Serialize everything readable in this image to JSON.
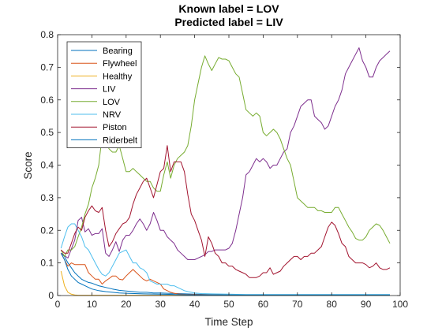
{
  "chart_data": {
    "type": "line",
    "title": "Known label = LOV",
    "subtitle": "Predicted label = LIV",
    "xlabel": "Time Step",
    "ylabel": "Score",
    "xlim": [
      0,
      100
    ],
    "ylim": [
      0,
      0.8
    ],
    "xticks": [
      0,
      10,
      20,
      30,
      40,
      50,
      60,
      70,
      80,
      90,
      100
    ],
    "yticks": [
      0,
      0.1,
      0.2,
      0.3,
      0.4,
      0.5,
      0.6,
      0.7,
      0.8
    ],
    "grid": false,
    "legend_position": "top-left",
    "series": [
      {
        "name": "Bearing",
        "color": "#0072BD",
        "x": [
          1,
          2,
          3,
          4,
          5,
          6,
          7,
          8,
          9,
          10,
          12,
          14,
          16,
          18,
          20,
          22,
          24,
          26,
          28,
          30,
          32,
          35,
          40,
          45,
          50,
          55,
          60,
          70,
          80,
          90,
          97
        ],
        "y": [
          0.13,
          0.12,
          0.1,
          0.085,
          0.07,
          0.06,
          0.05,
          0.045,
          0.04,
          0.038,
          0.03,
          0.025,
          0.02,
          0.016,
          0.014,
          0.012,
          0.01,
          0.01,
          0.008,
          0.008,
          0.007,
          0.006,
          0.004,
          0.003,
          0.002,
          0.002,
          0.002,
          0.002,
          0.002,
          0.002,
          0.002
        ]
      },
      {
        "name": "Flywheel",
        "color": "#D95319",
        "x": [
          1,
          2,
          3,
          4,
          5,
          6,
          7,
          8,
          9,
          10,
          11,
          12,
          13,
          14,
          15,
          16,
          17,
          18,
          19,
          20,
          21,
          22,
          23,
          24,
          25,
          26,
          27,
          28,
          29,
          30,
          31,
          32,
          33,
          34,
          35,
          36,
          38,
          40,
          45,
          50,
          55,
          60,
          70,
          80,
          90,
          97
        ],
        "y": [
          0.13,
          0.11,
          0.09,
          0.1,
          0.095,
          0.095,
          0.095,
          0.095,
          0.07,
          0.06,
          0.05,
          0.05,
          0.035,
          0.045,
          0.052,
          0.06,
          0.06,
          0.05,
          0.048,
          0.06,
          0.07,
          0.08,
          0.07,
          0.06,
          0.05,
          0.045,
          0.05,
          0.045,
          0.04,
          0.035,
          0.02,
          0.015,
          0.01,
          0.007,
          0.005,
          0.004,
          0.003,
          0.003,
          0.002,
          0.002,
          0.002,
          0.002,
          0.002,
          0.002,
          0.002,
          0.002
        ]
      },
      {
        "name": "Healthy",
        "color": "#EDB120",
        "x": [
          1,
          2,
          3,
          4,
          5,
          6,
          7,
          8,
          10,
          12,
          15,
          20,
          30,
          40,
          60,
          80,
          97
        ],
        "y": [
          0.075,
          0.03,
          0.01,
          0.004,
          0.002,
          0.001,
          0.001,
          0.001,
          0.001,
          0.001,
          0.001,
          0.001,
          0.001,
          0.001,
          0.001,
          0.001,
          0.001
        ]
      },
      {
        "name": "LIV",
        "color": "#7E2F8E",
        "x": [
          1,
          3,
          5,
          6,
          7,
          8,
          9,
          10,
          11,
          12,
          13,
          14,
          15,
          16,
          17,
          18,
          19,
          20,
          21,
          22,
          23,
          24,
          25,
          26,
          27,
          28,
          29,
          30,
          31,
          32,
          33,
          34,
          35,
          36,
          37,
          38,
          39,
          40,
          41,
          42,
          43,
          44,
          45,
          46,
          47,
          48,
          49,
          50,
          51,
          52,
          53,
          54,
          55,
          56,
          57,
          58,
          59,
          60,
          61,
          62,
          63,
          64,
          65,
          66,
          67,
          68,
          69,
          70,
          71,
          72,
          73,
          74,
          75,
          76,
          77,
          78,
          79,
          80,
          81,
          82,
          83,
          84,
          85,
          86,
          87,
          88,
          89,
          90,
          91,
          92,
          93,
          94,
          95,
          96,
          97
        ],
        "y": [
          0.13,
          0.115,
          0.17,
          0.23,
          0.24,
          0.195,
          0.205,
          0.185,
          0.19,
          0.19,
          0.205,
          0.13,
          0.12,
          0.14,
          0.165,
          0.135,
          0.17,
          0.185,
          0.185,
          0.2,
          0.22,
          0.235,
          0.22,
          0.2,
          0.22,
          0.255,
          0.23,
          0.2,
          0.2,
          0.18,
          0.17,
          0.16,
          0.14,
          0.13,
          0.12,
          0.11,
          0.11,
          0.11,
          0.115,
          0.12,
          0.125,
          0.135,
          0.135,
          0.14,
          0.14,
          0.14,
          0.14,
          0.145,
          0.16,
          0.2,
          0.25,
          0.3,
          0.37,
          0.38,
          0.4,
          0.42,
          0.41,
          0.42,
          0.41,
          0.39,
          0.4,
          0.4,
          0.42,
          0.44,
          0.45,
          0.5,
          0.52,
          0.55,
          0.58,
          0.59,
          0.6,
          0.6,
          0.55,
          0.54,
          0.53,
          0.51,
          0.52,
          0.55,
          0.58,
          0.6,
          0.63,
          0.68,
          0.7,
          0.72,
          0.74,
          0.76,
          0.72,
          0.7,
          0.67,
          0.67,
          0.7,
          0.72,
          0.73,
          0.74,
          0.75
        ]
      },
      {
        "name": "LOV",
        "color": "#77AC30",
        "x": [
          1,
          2,
          3,
          4,
          5,
          6,
          7,
          8,
          9,
          10,
          11,
          12,
          13,
          14,
          15,
          16,
          17,
          18,
          19,
          20,
          21,
          22,
          23,
          24,
          25,
          26,
          27,
          28,
          29,
          30,
          31,
          32,
          33,
          34,
          35,
          36,
          37,
          38,
          39,
          40,
          41,
          42,
          43,
          44,
          45,
          46,
          47,
          48,
          49,
          50,
          51,
          52,
          53,
          54,
          55,
          56,
          57,
          58,
          59,
          60,
          61,
          62,
          63,
          64,
          65,
          66,
          67,
          68,
          69,
          70,
          71,
          72,
          73,
          74,
          75,
          76,
          77,
          78,
          79,
          80,
          81,
          82,
          83,
          84,
          85,
          86,
          87,
          88,
          89,
          90,
          91,
          92,
          93,
          94,
          95,
          96,
          97
        ],
        "y": [
          0.14,
          0.12,
          0.14,
          0.14,
          0.15,
          0.18,
          0.21,
          0.25,
          0.28,
          0.33,
          0.36,
          0.4,
          0.49,
          0.47,
          0.45,
          0.44,
          0.44,
          0.46,
          0.42,
          0.38,
          0.38,
          0.39,
          0.38,
          0.37,
          0.36,
          0.35,
          0.35,
          0.33,
          0.32,
          0.32,
          0.37,
          0.41,
          0.36,
          0.4,
          0.42,
          0.43,
          0.44,
          0.46,
          0.52,
          0.6,
          0.65,
          0.7,
          0.735,
          0.71,
          0.69,
          0.71,
          0.73,
          0.725,
          0.725,
          0.72,
          0.7,
          0.68,
          0.67,
          0.62,
          0.57,
          0.56,
          0.55,
          0.56,
          0.55,
          0.5,
          0.49,
          0.5,
          0.51,
          0.5,
          0.48,
          0.45,
          0.42,
          0.4,
          0.35,
          0.3,
          0.29,
          0.28,
          0.27,
          0.27,
          0.27,
          0.26,
          0.26,
          0.255,
          0.255,
          0.255,
          0.27,
          0.27,
          0.25,
          0.23,
          0.21,
          0.195,
          0.175,
          0.17,
          0.17,
          0.18,
          0.2,
          0.21,
          0.22,
          0.215,
          0.2,
          0.18,
          0.16
        ]
      },
      {
        "name": "NRV",
        "color": "#4DBEEE",
        "x": [
          1,
          2,
          3,
          4,
          5,
          6,
          7,
          8,
          9,
          10,
          11,
          12,
          13,
          14,
          15,
          16,
          17,
          18,
          19,
          20,
          21,
          22,
          23,
          24,
          25,
          26,
          27,
          28,
          29,
          30,
          31,
          32,
          33,
          34,
          35,
          36,
          37,
          38,
          39,
          40,
          42,
          45,
          50,
          55,
          60,
          70,
          80,
          90,
          97
        ],
        "y": [
          0.145,
          0.18,
          0.21,
          0.22,
          0.22,
          0.2,
          0.18,
          0.15,
          0.14,
          0.12,
          0.1,
          0.08,
          0.065,
          0.06,
          0.07,
          0.09,
          0.11,
          0.13,
          0.135,
          0.14,
          0.12,
          0.1,
          0.1,
          0.085,
          0.08,
          0.07,
          0.045,
          0.04,
          0.035,
          0.035,
          0.035,
          0.035,
          0.03,
          0.03,
          0.025,
          0.02,
          0.015,
          0.012,
          0.01,
          0.008,
          0.006,
          0.005,
          0.004,
          0.003,
          0.003,
          0.003,
          0.003,
          0.003,
          0.003
        ]
      },
      {
        "name": "Piston",
        "color": "#A2142F",
        "x": [
          1,
          2,
          3,
          4,
          5,
          6,
          7,
          8,
          9,
          10,
          11,
          12,
          13,
          14,
          15,
          16,
          17,
          18,
          19,
          20,
          21,
          22,
          23,
          24,
          25,
          26,
          27,
          28,
          29,
          30,
          31,
          32,
          33,
          34,
          35,
          36,
          37,
          38,
          39,
          40,
          41,
          42,
          43,
          44,
          45,
          46,
          47,
          48,
          49,
          50,
          51,
          52,
          53,
          54,
          55,
          56,
          57,
          58,
          59,
          60,
          61,
          62,
          63,
          64,
          65,
          66,
          67,
          68,
          69,
          70,
          71,
          72,
          73,
          74,
          75,
          76,
          77,
          78,
          79,
          80,
          81,
          82,
          83,
          84,
          85,
          86,
          87,
          88,
          89,
          90,
          91,
          92,
          93,
          94,
          95,
          96,
          97
        ],
        "y": [
          0.14,
          0.13,
          0.13,
          0.16,
          0.19,
          0.21,
          0.2,
          0.24,
          0.26,
          0.275,
          0.26,
          0.255,
          0.27,
          0.2,
          0.15,
          0.165,
          0.19,
          0.205,
          0.22,
          0.225,
          0.24,
          0.28,
          0.31,
          0.33,
          0.35,
          0.36,
          0.33,
          0.3,
          0.34,
          0.38,
          0.39,
          0.46,
          0.38,
          0.41,
          0.41,
          0.41,
          0.38,
          0.31,
          0.25,
          0.23,
          0.2,
          0.17,
          0.12,
          0.18,
          0.16,
          0.13,
          0.12,
          0.1,
          0.1,
          0.09,
          0.09,
          0.08,
          0.075,
          0.07,
          0.065,
          0.055,
          0.055,
          0.055,
          0.06,
          0.07,
          0.07,
          0.085,
          0.065,
          0.07,
          0.075,
          0.09,
          0.1,
          0.11,
          0.12,
          0.12,
          0.11,
          0.12,
          0.12,
          0.13,
          0.13,
          0.14,
          0.15,
          0.18,
          0.21,
          0.225,
          0.215,
          0.19,
          0.16,
          0.15,
          0.12,
          0.11,
          0.1,
          0.1,
          0.1,
          0.095,
          0.085,
          0.09,
          0.1,
          0.085,
          0.08,
          0.08,
          0.085
        ]
      },
      {
        "name": "Riderbelt",
        "color": "#0072BD",
        "x": [
          1,
          2,
          3,
          4,
          5,
          6,
          7,
          8,
          9,
          10,
          12,
          14,
          16,
          18,
          20,
          25,
          30,
          35,
          40,
          50,
          60,
          70,
          80,
          90,
          97
        ],
        "y": [
          0.13,
          0.11,
          0.08,
          0.06,
          0.05,
          0.04,
          0.035,
          0.03,
          0.025,
          0.02,
          0.015,
          0.012,
          0.01,
          0.008,
          0.007,
          0.005,
          0.004,
          0.003,
          0.002,
          0.002,
          0.002,
          0.002,
          0.002,
          0.002,
          0.002
        ]
      }
    ]
  }
}
